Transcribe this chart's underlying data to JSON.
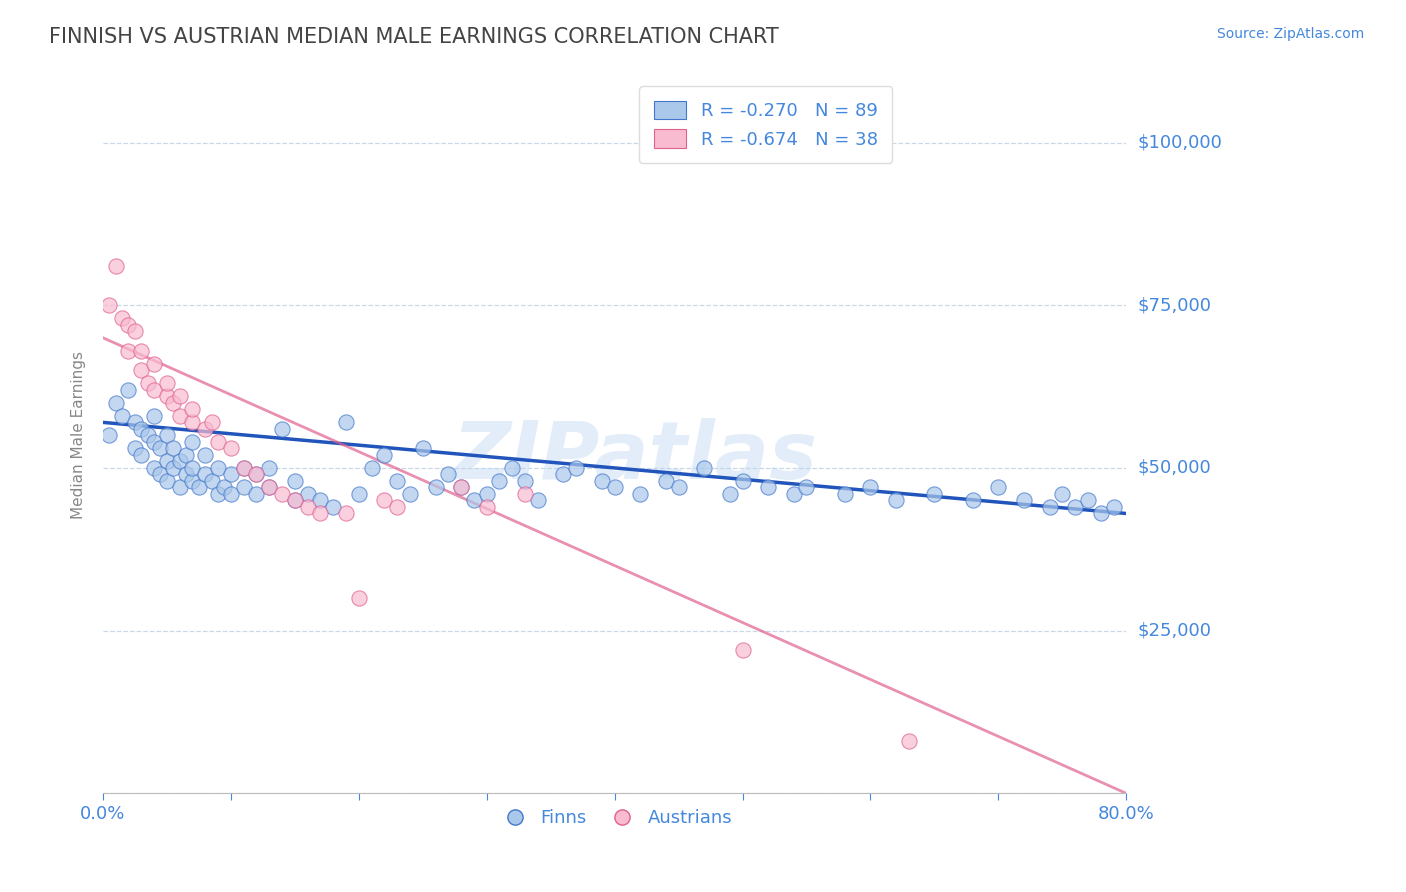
{
  "title": "FINNISH VS AUSTRIAN MEDIAN MALE EARNINGS CORRELATION CHART",
  "source_text": "Source: ZipAtlas.com",
  "ylabel": "Median Male Earnings",
  "xlim": [
    0.0,
    0.8
  ],
  "ylim": [
    0,
    110000
  ],
  "yticks": [
    0,
    25000,
    50000,
    75000,
    100000
  ],
  "ytick_labels": [
    "",
    "$25,000",
    "$50,000",
    "$75,000",
    "$100,000"
  ],
  "background_color": "#ffffff",
  "grid_color": "#c8d8e8",
  "finn_color": "#aac8ea",
  "finn_edge_color": "#4477cc",
  "austrian_color": "#f8bbd0",
  "austrian_edge_color": "#e06090",
  "finn_line_color": "#2255bb",
  "austrian_line_color": "#e06090",
  "legend_R_finn": "R = -0.270",
  "legend_N_finn": "N = 89",
  "legend_R_austrian": "R = -0.674",
  "legend_N_austrian": "N = 38",
  "text_color": "#4488dd",
  "title_color": "#444444",
  "watermark": "ZIPatlas",
  "finn_trend_x0": 0.0,
  "finn_trend_x1": 0.8,
  "finn_trend_y0": 57000,
  "finn_trend_y1": 43000,
  "austrian_trend_x0": 0.0,
  "austrian_trend_x1": 0.8,
  "austrian_trend_y0": 70000,
  "austrian_trend_y1": 0,
  "finn_scatter_x": [
    0.005,
    0.01,
    0.015,
    0.02,
    0.025,
    0.025,
    0.03,
    0.03,
    0.035,
    0.04,
    0.04,
    0.04,
    0.045,
    0.045,
    0.05,
    0.05,
    0.05,
    0.055,
    0.055,
    0.06,
    0.06,
    0.065,
    0.065,
    0.07,
    0.07,
    0.07,
    0.075,
    0.08,
    0.08,
    0.085,
    0.09,
    0.09,
    0.095,
    0.1,
    0.1,
    0.11,
    0.11,
    0.12,
    0.12,
    0.13,
    0.13,
    0.14,
    0.15,
    0.15,
    0.16,
    0.17,
    0.18,
    0.19,
    0.2,
    0.21,
    0.22,
    0.23,
    0.24,
    0.25,
    0.26,
    0.27,
    0.28,
    0.29,
    0.3,
    0.31,
    0.32,
    0.33,
    0.34,
    0.36,
    0.37,
    0.39,
    0.4,
    0.42,
    0.44,
    0.45,
    0.47,
    0.49,
    0.5,
    0.52,
    0.54,
    0.55,
    0.58,
    0.6,
    0.62,
    0.65,
    0.68,
    0.7,
    0.72,
    0.74,
    0.75,
    0.76,
    0.77,
    0.78,
    0.79
  ],
  "finn_scatter_y": [
    55000,
    60000,
    58000,
    62000,
    53000,
    57000,
    52000,
    56000,
    55000,
    50000,
    54000,
    58000,
    49000,
    53000,
    48000,
    51000,
    55000,
    50000,
    53000,
    47000,
    51000,
    49000,
    52000,
    48000,
    50000,
    54000,
    47000,
    49000,
    52000,
    48000,
    46000,
    50000,
    47000,
    46000,
    49000,
    47000,
    50000,
    46000,
    49000,
    47000,
    50000,
    56000,
    45000,
    48000,
    46000,
    45000,
    44000,
    57000,
    46000,
    50000,
    52000,
    48000,
    46000,
    53000,
    47000,
    49000,
    47000,
    45000,
    46000,
    48000,
    50000,
    48000,
    45000,
    49000,
    50000,
    48000,
    47000,
    46000,
    48000,
    47000,
    50000,
    46000,
    48000,
    47000,
    46000,
    47000,
    46000,
    47000,
    45000,
    46000,
    45000,
    47000,
    45000,
    44000,
    46000,
    44000,
    45000,
    43000,
    44000
  ],
  "austrian_scatter_x": [
    0.005,
    0.01,
    0.015,
    0.02,
    0.02,
    0.025,
    0.03,
    0.03,
    0.035,
    0.04,
    0.04,
    0.05,
    0.05,
    0.055,
    0.06,
    0.06,
    0.07,
    0.07,
    0.08,
    0.085,
    0.09,
    0.1,
    0.11,
    0.12,
    0.13,
    0.14,
    0.15,
    0.16,
    0.17,
    0.19,
    0.2,
    0.22,
    0.23,
    0.28,
    0.3,
    0.33,
    0.5,
    0.63
  ],
  "austrian_scatter_y": [
    75000,
    81000,
    73000,
    72000,
    68000,
    71000,
    68000,
    65000,
    63000,
    66000,
    62000,
    61000,
    63000,
    60000,
    58000,
    61000,
    57000,
    59000,
    56000,
    57000,
    54000,
    53000,
    50000,
    49000,
    47000,
    46000,
    45000,
    44000,
    43000,
    43000,
    30000,
    45000,
    44000,
    47000,
    44000,
    46000,
    22000,
    8000
  ]
}
